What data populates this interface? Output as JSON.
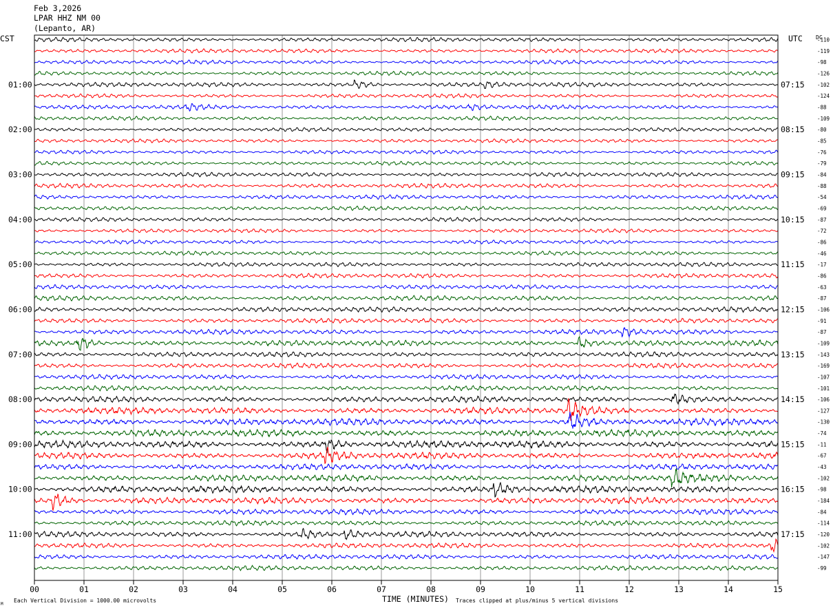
{
  "header": {
    "date": "Feb 3,2026",
    "station": "LPAR HHZ NM 00",
    "location": "(Lepanto, AR)"
  },
  "left_zone": "CST",
  "right_zone": "UTC",
  "dc_label": "DC",
  "footer": {
    "scale_note": "Each Vertical Division = 1000.00 microvolts",
    "xlabel": "TIME (MINUTES)",
    "clip_note": "Traces clipped at plus/minus 5 vertical divisions",
    "corner_mark": "M"
  },
  "colors": {
    "cycle": [
      "#000000",
      "#ff0000",
      "#0000ff",
      "#006400"
    ],
    "grid": "#808080",
    "frame": "#000000"
  },
  "chart_data": {
    "type": "line",
    "subtype": "helicorder",
    "minutes_per_line": 15,
    "x_ticks": [
      "00",
      "01",
      "02",
      "03",
      "04",
      "05",
      "06",
      "07",
      "08",
      "09",
      "10",
      "11",
      "12",
      "13",
      "14",
      "15"
    ],
    "xlim": [
      0,
      15
    ],
    "grid": true,
    "line_count": 48,
    "left_time_labels": [
      "01:00",
      "02:00",
      "03:00",
      "04:00",
      "05:00",
      "06:00",
      "07:00",
      "08:00",
      "09:00",
      "10:00",
      "11:00"
    ],
    "right_time_labels": [
      "07:15",
      "08:15",
      "09:15",
      "10:15",
      "11:15",
      "12:15",
      "13:15",
      "14:15",
      "15:15",
      "16:15",
      "17:15"
    ],
    "hour_label_every": 4,
    "hour_label_start_row": 4,
    "dc_offsets": [
      "-110",
      "-119",
      "-98",
      "-126",
      "-102",
      "-124",
      "-88",
      "-109",
      "-80",
      "-85",
      "-76",
      "-79",
      "-84",
      "-88",
      "-54",
      "-69",
      "-87",
      "-72",
      "-86",
      "-46",
      "-17",
      "-86",
      "-63",
      "-87",
      "-106",
      "-91",
      "-87",
      "-109",
      "-143",
      "-169",
      "-107",
      "-101",
      "-106",
      "-127",
      "-130",
      "-74",
      "-11",
      "-67",
      "-43",
      "-102",
      "-98",
      "-184",
      "-84",
      "-114",
      "-120",
      "-102",
      "-147",
      "-99"
    ],
    "activity_levels": [
      0.45,
      0.4,
      0.4,
      0.4,
      0.5,
      0.4,
      0.45,
      0.4,
      0.35,
      0.35,
      0.35,
      0.35,
      0.45,
      0.5,
      0.45,
      0.45,
      0.4,
      0.35,
      0.35,
      0.4,
      0.45,
      0.5,
      0.45,
      0.6,
      0.6,
      0.55,
      0.6,
      0.75,
      0.6,
      0.6,
      0.55,
      0.6,
      0.8,
      0.9,
      0.95,
      0.95,
      1.0,
      0.9,
      0.8,
      0.9,
      0.95,
      0.85,
      0.7,
      0.6,
      0.7,
      0.6,
      0.55,
      0.55
    ],
    "events": [
      {
        "row": 4,
        "minute": 6.5,
        "amp": 0.5
      },
      {
        "row": 4,
        "minute": 9.1,
        "amp": 0.4
      },
      {
        "row": 6,
        "minute": 3.1,
        "amp": 0.4
      },
      {
        "row": 6,
        "minute": 8.8,
        "amp": 0.4
      },
      {
        "row": 27,
        "minute": 0.9,
        "amp": 0.8
      },
      {
        "row": 27,
        "minute": 11.0,
        "amp": 0.6
      },
      {
        "row": 26,
        "minute": 11.9,
        "amp": 0.5
      },
      {
        "row": 32,
        "minute": 12.9,
        "amp": 0.6
      },
      {
        "row": 33,
        "minute": 10.8,
        "amp": 0.9
      },
      {
        "row": 34,
        "minute": 10.8,
        "amp": 0.8
      },
      {
        "row": 36,
        "minute": 5.9,
        "amp": 0.5
      },
      {
        "row": 37,
        "minute": 5.9,
        "amp": 0.6
      },
      {
        "row": 39,
        "minute": 12.9,
        "amp": 0.7
      },
      {
        "row": 40,
        "minute": 9.3,
        "amp": 0.6
      },
      {
        "row": 41,
        "minute": 0.4,
        "amp": 0.7
      },
      {
        "row": 44,
        "minute": 5.4,
        "amp": 0.5
      },
      {
        "row": 44,
        "minute": 6.3,
        "amp": 0.5
      },
      {
        "row": 45,
        "minute": 14.9,
        "amp": 0.8
      }
    ]
  }
}
